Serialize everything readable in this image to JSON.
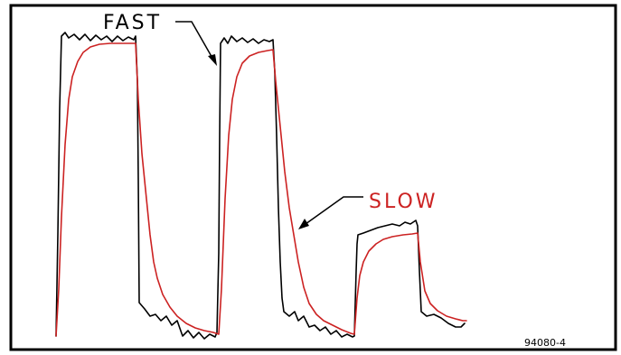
{
  "labels": {
    "fast": "FAST",
    "slow": "SLOW",
    "figure_id": "94080-4"
  },
  "colors": {
    "fast_trace": "#000000",
    "slow_trace": "#cc2222",
    "frame": "#000000",
    "background": "#ffffff"
  }
}
